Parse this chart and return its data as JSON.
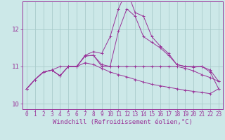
{
  "background_color": "#cce8e8",
  "grid_color": "#aacccc",
  "line_color": "#993399",
  "xlabel": "Windchill (Refroidissement éolien,°C)",
  "xlabel_fontsize": 6.5,
  "tick_fontsize": 5.5,
  "ytick_fontsize": 6.5,
  "ylim": [
    9.85,
    12.75
  ],
  "xlim": [
    -0.5,
    23.5
  ],
  "yticks": [
    10,
    11,
    12
  ],
  "xticks": [
    0,
    1,
    2,
    3,
    4,
    5,
    6,
    7,
    8,
    9,
    10,
    11,
    12,
    13,
    14,
    15,
    16,
    17,
    18,
    19,
    20,
    21,
    22,
    23
  ],
  "series": [
    [
      10.4,
      10.65,
      10.85,
      10.9,
      10.75,
      11.0,
      11.0,
      11.28,
      11.3,
      11.05,
      11.0,
      11.95,
      12.55,
      12.35,
      11.8,
      11.65,
      11.5,
      11.3,
      11.05,
      11.0,
      11.0,
      11.0,
      10.9,
      10.6
    ],
    [
      10.4,
      10.65,
      10.85,
      10.9,
      10.75,
      11.0,
      11.0,
      11.1,
      11.05,
      10.95,
      10.85,
      10.78,
      10.72,
      10.65,
      10.58,
      10.52,
      10.48,
      10.44,
      10.4,
      10.36,
      10.33,
      10.3,
      10.27,
      10.4
    ],
    [
      10.4,
      10.65,
      10.85,
      10.9,
      11.0,
      11.0,
      11.0,
      11.28,
      11.3,
      11.0,
      11.0,
      11.0,
      11.0,
      11.0,
      11.0,
      11.0,
      11.0,
      11.0,
      11.0,
      10.95,
      10.88,
      10.78,
      10.7,
      10.6
    ],
    [
      10.4,
      10.65,
      10.85,
      10.9,
      10.75,
      11.0,
      11.0,
      11.3,
      11.4,
      11.35,
      11.8,
      12.55,
      13.05,
      12.45,
      12.35,
      11.8,
      11.55,
      11.35,
      11.05,
      11.0,
      10.98,
      11.0,
      10.85,
      10.4
    ]
  ]
}
